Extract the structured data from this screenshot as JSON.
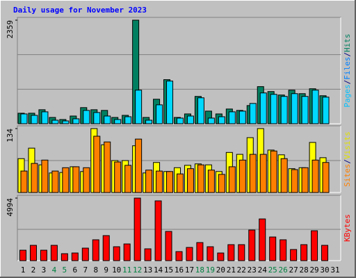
{
  "title": "Daily usage for November 2023",
  "categories": [
    "1",
    "2",
    "3",
    "4",
    "5",
    "6",
    "7",
    "8",
    "9",
    "10",
    "11",
    "12",
    "13",
    "14",
    "15",
    "16",
    "17",
    "18",
    "19",
    "20",
    "21",
    "22",
    "23",
    "24",
    "25",
    "26",
    "27",
    "28",
    "29",
    "30",
    "31"
  ],
  "category_colors": [
    "#000000",
    "#000000",
    "#000000",
    "#008040",
    "#008040",
    "#000000",
    "#000000",
    "#000000",
    "#000000",
    "#000000",
    "#008040",
    "#008040",
    "#000000",
    "#000000",
    "#000000",
    "#000000",
    "#000000",
    "#008040",
    "#008040",
    "#000000",
    "#000000",
    "#000000",
    "#000000",
    "#000000",
    "#008040",
    "#008040",
    "#000000",
    "#000000",
    "#000000",
    "#000000",
    "#000000"
  ],
  "chart_data": [
    {
      "type": "bar",
      "ylim": [
        0,
        2359
      ],
      "yticks": [
        2359
      ],
      "legend_separator": "/",
      "legend": [
        {
          "text": "Pages",
          "color": "#00C0FF"
        },
        {
          "text": "Files",
          "color": "#0080FF"
        },
        {
          "text": "Hits",
          "color": "#008060"
        }
      ],
      "series": [
        {
          "color": "#008060",
          "values": [
            239,
            239,
            319,
            143,
            96,
            175,
            367,
            319,
            303,
            143,
            191,
            2359,
            143,
            558,
            1004,
            143,
            223,
            622,
            287,
            223,
            335,
            303,
            414,
            845,
            733,
            654,
            765,
            685,
            797,
            638,
            0
          ]
        },
        {
          "color": "#00D8FF",
          "values": [
            223,
            191,
            271,
            80,
            64,
            112,
            303,
            255,
            175,
            96,
            159,
            765,
            80,
            430,
            972,
            128,
            175,
            590,
            128,
            159,
            271,
            287,
            462,
            701,
            669,
            622,
            685,
            622,
            765,
            606,
            0
          ]
        }
      ]
    },
    {
      "type": "bar",
      "ylim": [
        0,
        134
      ],
      "yticks": [
        134
      ],
      "legend_separator": "/",
      "legend": [
        {
          "text": "Sites",
          "color": "#FF8000"
        },
        {
          "text": "Visits",
          "color": "#E0E000"
        }
      ],
      "series": [
        {
          "color": "#FFFF00",
          "values": [
            71,
            93,
            58,
            41,
            42,
            54,
            44,
            134,
            100,
            67,
            67,
            98,
            41,
            63,
            44,
            52,
            57,
            60,
            58,
            44,
            84,
            80,
            115,
            134,
            89,
            79,
            50,
            52,
            105,
            73,
            0
          ]
        },
        {
          "color": "#FF8000",
          "values": [
            45,
            61,
            68,
            45,
            52,
            54,
            52,
            118,
            106,
            64,
            57,
            112,
            47,
            45,
            44,
            39,
            50,
            58,
            47,
            38,
            54,
            68,
            80,
            80,
            87,
            71,
            48,
            52,
            68,
            63,
            0
          ]
        }
      ]
    },
    {
      "type": "bar",
      "ylim": [
        0,
        4994
      ],
      "yticks": [
        4994
      ],
      "legend_separator": "/",
      "legend": [
        {
          "text": "KBytes",
          "color": "#FF0000"
        }
      ],
      "series": [
        {
          "color": "#FF0000",
          "values": [
            832,
            1221,
            832,
            1221,
            555,
            610,
            999,
            1665,
            1998,
            1110,
            1332,
            4994,
            943,
            4772,
            2331,
            721,
            1054,
            1443,
            1110,
            610,
            1276,
            1276,
            2442,
            3329,
            1887,
            1665,
            888,
            1276,
            2386,
            1221,
            0
          ]
        }
      ]
    }
  ]
}
